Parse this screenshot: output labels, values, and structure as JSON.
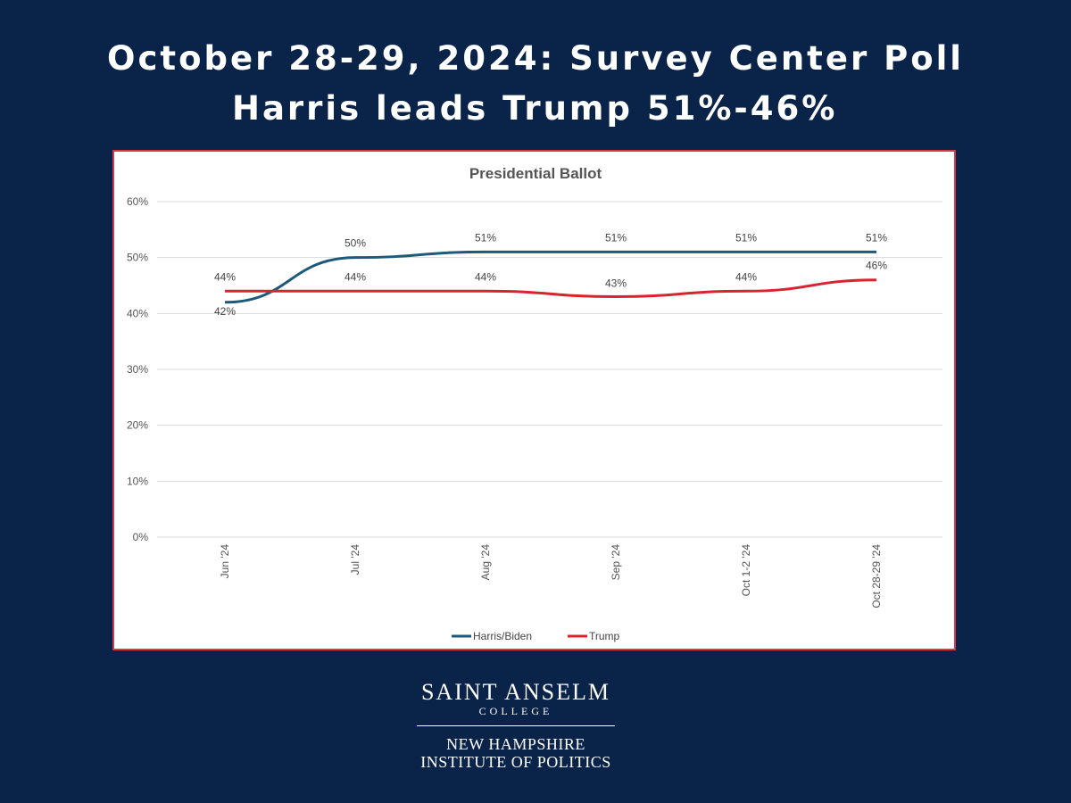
{
  "headline": {
    "line1": "October 28-29, 2024: Survey Center Poll",
    "line2": "Harris leads Trump 51%-46%"
  },
  "footer": {
    "college_name": "SAINT ANSELM",
    "college_sub": "COLLEGE",
    "institute_line1": "NEW HAMPSHIRE",
    "institute_line2": "INSTITUTE OF POLITICS"
  },
  "chart_data": {
    "type": "line",
    "title": "Presidential Ballot",
    "categories": [
      "Jun '24",
      "Jul '24",
      "Aug '24",
      "Sep '24",
      "Oct 1-2 '24",
      "Oct 28-29 '24"
    ],
    "y_ticks": [
      "0%",
      "10%",
      "20%",
      "30%",
      "40%",
      "50%",
      "60%"
    ],
    "ylim": [
      0,
      60
    ],
    "grid": true,
    "legend_position": "bottom",
    "series": [
      {
        "name": "Harris/Biden",
        "color": "#1d5a7a",
        "values": [
          42,
          50,
          51,
          51,
          51,
          51
        ],
        "labels": [
          "42%",
          "50%",
          "51%",
          "51%",
          "51%",
          "51%"
        ]
      },
      {
        "name": "Trump",
        "color": "#d9242f",
        "values": [
          44,
          44,
          44,
          43,
          44,
          46
        ],
        "labels": [
          "44%",
          "44%",
          "44%",
          "43%",
          "44%",
          "46%"
        ]
      }
    ]
  }
}
